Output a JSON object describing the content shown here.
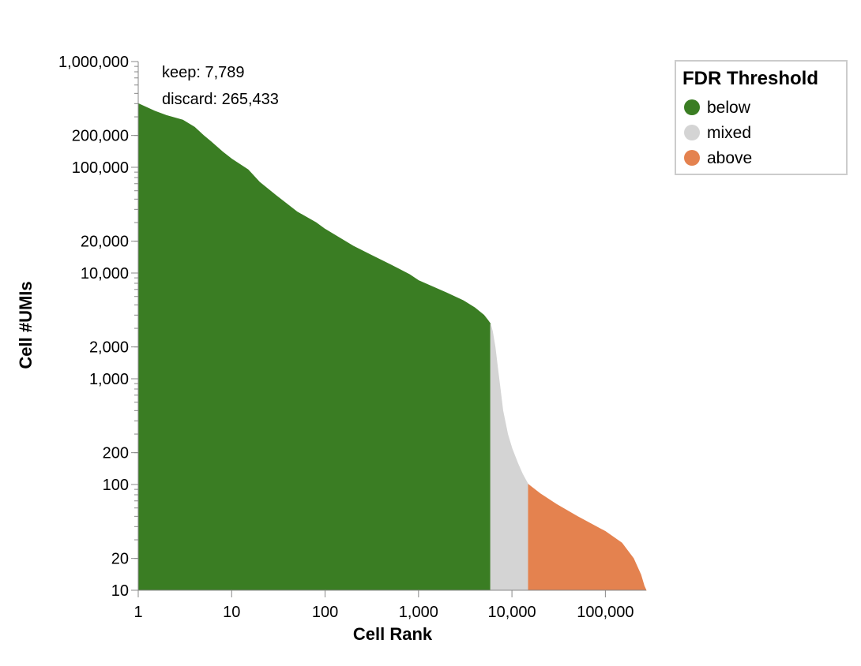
{
  "chart_data": {
    "type": "area",
    "xlabel": "Cell Rank",
    "ylabel": "Cell #UMIs",
    "x_scale": "log",
    "y_scale": "log",
    "xlim": [
      1,
      273222
    ],
    "ylim": [
      10,
      1000000
    ],
    "x_ticks": [
      {
        "value": 1,
        "label": "1"
      },
      {
        "value": 10,
        "label": "10"
      },
      {
        "value": 100,
        "label": "100"
      },
      {
        "value": 1000,
        "label": "1,000"
      },
      {
        "value": 10000,
        "label": "10,000"
      },
      {
        "value": 100000,
        "label": "100,000"
      }
    ],
    "y_ticks": [
      {
        "value": 1000000,
        "label": "1,000,000"
      },
      {
        "value": 200000,
        "label": "200,000"
      },
      {
        "value": 100000,
        "label": "100,000"
      },
      {
        "value": 20000,
        "label": "20,000"
      },
      {
        "value": 10000,
        "label": "10,000"
      },
      {
        "value": 2000,
        "label": "2,000"
      },
      {
        "value": 1000,
        "label": "1,000"
      },
      {
        "value": 200,
        "label": "200"
      },
      {
        "value": 100,
        "label": "100"
      },
      {
        "value": 20,
        "label": "20"
      },
      {
        "value": 10,
        "label": "10"
      }
    ],
    "annotations": [
      "keep: 7,789",
      "discard: 265,433"
    ],
    "legend": {
      "title": "FDR Threshold",
      "placement": "top-right",
      "items": [
        {
          "label": "below",
          "color": "#3a7d23"
        },
        {
          "label": "mixed",
          "color": "#d4d4d4"
        },
        {
          "label": "above",
          "color": "#e4824f"
        }
      ]
    },
    "series": [
      {
        "name": "below",
        "color": "#3a7d23",
        "points": [
          [
            1,
            400000
          ],
          [
            1.5,
            340000
          ],
          [
            2,
            310000
          ],
          [
            3,
            280000
          ],
          [
            4,
            240000
          ],
          [
            5,
            200000
          ],
          [
            6,
            175000
          ],
          [
            8,
            140000
          ],
          [
            10,
            120000
          ],
          [
            15,
            95000
          ],
          [
            20,
            72000
          ],
          [
            30,
            54000
          ],
          [
            50,
            38000
          ],
          [
            80,
            30000
          ],
          [
            100,
            26000
          ],
          [
            200,
            18000
          ],
          [
            300,
            15000
          ],
          [
            500,
            12000
          ],
          [
            800,
            9700
          ],
          [
            1000,
            8500
          ],
          [
            2000,
            6500
          ],
          [
            3000,
            5500
          ],
          [
            4000,
            4700
          ],
          [
            5000,
            4000
          ],
          [
            5500,
            3600
          ],
          [
            5900,
            3300
          ]
        ]
      },
      {
        "name": "mixed",
        "color": "#d4d4d4",
        "points": [
          [
            5900,
            3300
          ],
          [
            6200,
            2800
          ],
          [
            6600,
            2000
          ],
          [
            7000,
            1300
          ],
          [
            7500,
            800
          ],
          [
            8000,
            500
          ],
          [
            9000,
            300
          ],
          [
            10000,
            220
          ],
          [
            11500,
            160
          ],
          [
            13000,
            125
          ],
          [
            14500,
            105
          ],
          [
            15000,
            100
          ]
        ]
      },
      {
        "name": "above",
        "color": "#e4824f",
        "points": [
          [
            15000,
            100
          ],
          [
            20000,
            82
          ],
          [
            30000,
            65
          ],
          [
            50000,
            50
          ],
          [
            80000,
            40
          ],
          [
            100000,
            36
          ],
          [
            150000,
            28
          ],
          [
            200000,
            20
          ],
          [
            240000,
            14
          ],
          [
            260000,
            11
          ],
          [
            273222,
            10
          ]
        ]
      }
    ]
  }
}
